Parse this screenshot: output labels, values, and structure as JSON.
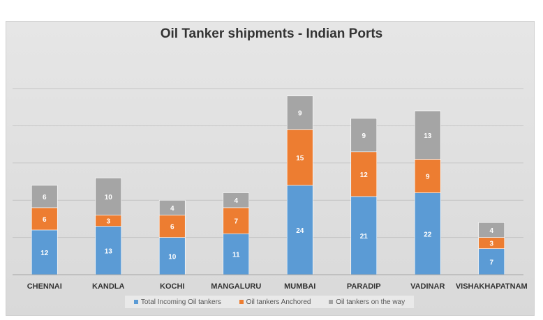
{
  "chart_data": {
    "type": "bar",
    "stacked": true,
    "title": "Oil Tanker shipments  - Indian Ports",
    "xlabel": "",
    "ylabel": "",
    "ylim": [
      0,
      50
    ],
    "grid": true,
    "legend_position": "bottom",
    "categories": [
      "CHENNAI",
      "KANDLA",
      "KOCHI",
      "MANGALURU",
      "MUMBAI",
      "PARADIP",
      "VADINAR",
      "VISHAKHAPATNAM"
    ],
    "series": [
      {
        "name": "Total Incoming Oil tankers",
        "color": "#5b9bd5",
        "values": [
          12,
          13,
          10,
          11,
          24,
          21,
          22,
          7
        ]
      },
      {
        "name": "Oil tankers Anchored",
        "color": "#ed7d31",
        "values": [
          6,
          3,
          6,
          7,
          15,
          12,
          9,
          3
        ]
      },
      {
        "name": "Oil tankers on the way",
        "color": "#a5a5a5",
        "values": [
          6,
          10,
          4,
          4,
          9,
          9,
          13,
          4
        ]
      }
    ]
  }
}
